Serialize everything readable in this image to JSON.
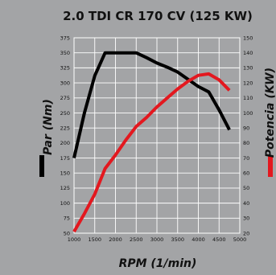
{
  "chart_data": {
    "type": "line",
    "title": "2.0 TDI CR 170 CV (125 KW)",
    "xlabel": "RPM (1/min)",
    "ylabel_left": "Par (Nm)",
    "ylabel_right": "Potencia (KW)",
    "xlim": [
      1000,
      5000
    ],
    "x_ticks": [
      1000,
      1500,
      2000,
      2500,
      3000,
      3500,
      4000,
      4500,
      5000
    ],
    "ylim_left": [
      50,
      375
    ],
    "y_ticks_left": [
      50,
      75,
      100,
      125,
      150,
      175,
      200,
      225,
      250,
      275,
      300,
      325,
      350,
      375
    ],
    "ylim_right": [
      20,
      150
    ],
    "y_ticks_right": [
      20,
      30,
      40,
      50,
      60,
      70,
      80,
      90,
      100,
      110,
      120,
      130,
      140,
      150
    ],
    "grid": true,
    "series": [
      {
        "name": "Par (Nm)",
        "axis": "left",
        "color": "#000000",
        "x": [
          1000,
          1250,
          1500,
          1750,
          2000,
          2250,
          2500,
          2750,
          3000,
          3250,
          3500,
          3750,
          4000,
          4250,
          4500,
          4750
        ],
        "y": [
          175,
          250,
          312,
          350,
          350,
          350,
          350,
          342,
          333,
          326,
          318,
          306,
          294,
          285,
          255,
          222
        ]
      },
      {
        "name": "Potencia (KW)",
        "axis": "right",
        "color": "#e3181f",
        "x": [
          1000,
          1250,
          1500,
          1750,
          2000,
          2250,
          2500,
          2750,
          3000,
          3250,
          3500,
          3750,
          4000,
          4250,
          4500,
          4750
        ],
        "y": [
          21,
          33,
          46,
          63,
          72,
          82,
          91,
          97,
          104,
          110,
          116,
          121,
          125,
          126,
          122,
          115
        ]
      }
    ]
  }
}
